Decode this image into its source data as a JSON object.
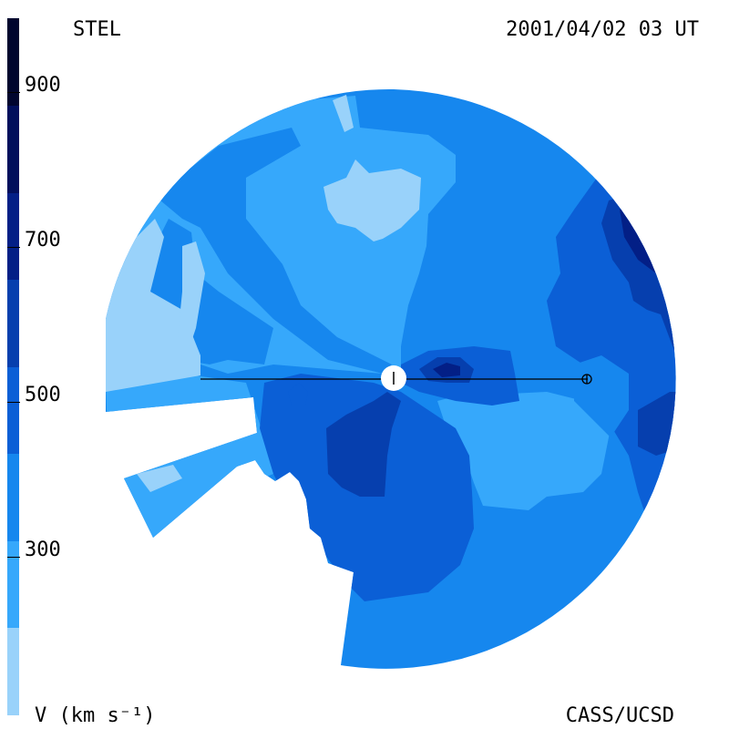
{
  "header": {
    "instrument": "STEL",
    "datetime": "2001/04/02 03 UT"
  },
  "footer": {
    "credit": "CASS/UCSD"
  },
  "colorbar": {
    "label": "V (km s⁻¹)",
    "ticks": [
      "300",
      "500",
      "700",
      "900"
    ],
    "colors": [
      "#99d2fa",
      "#36a8fb",
      "#1687ee",
      "#0b5fd6",
      "#063fae",
      "#031f86",
      "#010f5c",
      "#00052e"
    ],
    "level_bounds": [
      100,
      200,
      300,
      400,
      500,
      600,
      700,
      800,
      900
    ]
  },
  "map": {
    "type": "solar wind velocity tomography (ecliptic cut)",
    "sun_marker": "sun-center",
    "earth_marker": "earth-symbol",
    "palette": {
      "lightest": "#99d2fa",
      "light": "#36a8fb",
      "medium": "#1687ee",
      "dark": "#0b5fd6",
      "darker": "#063fae",
      "darkest": "#031f86",
      "deep": "#00052e"
    }
  }
}
